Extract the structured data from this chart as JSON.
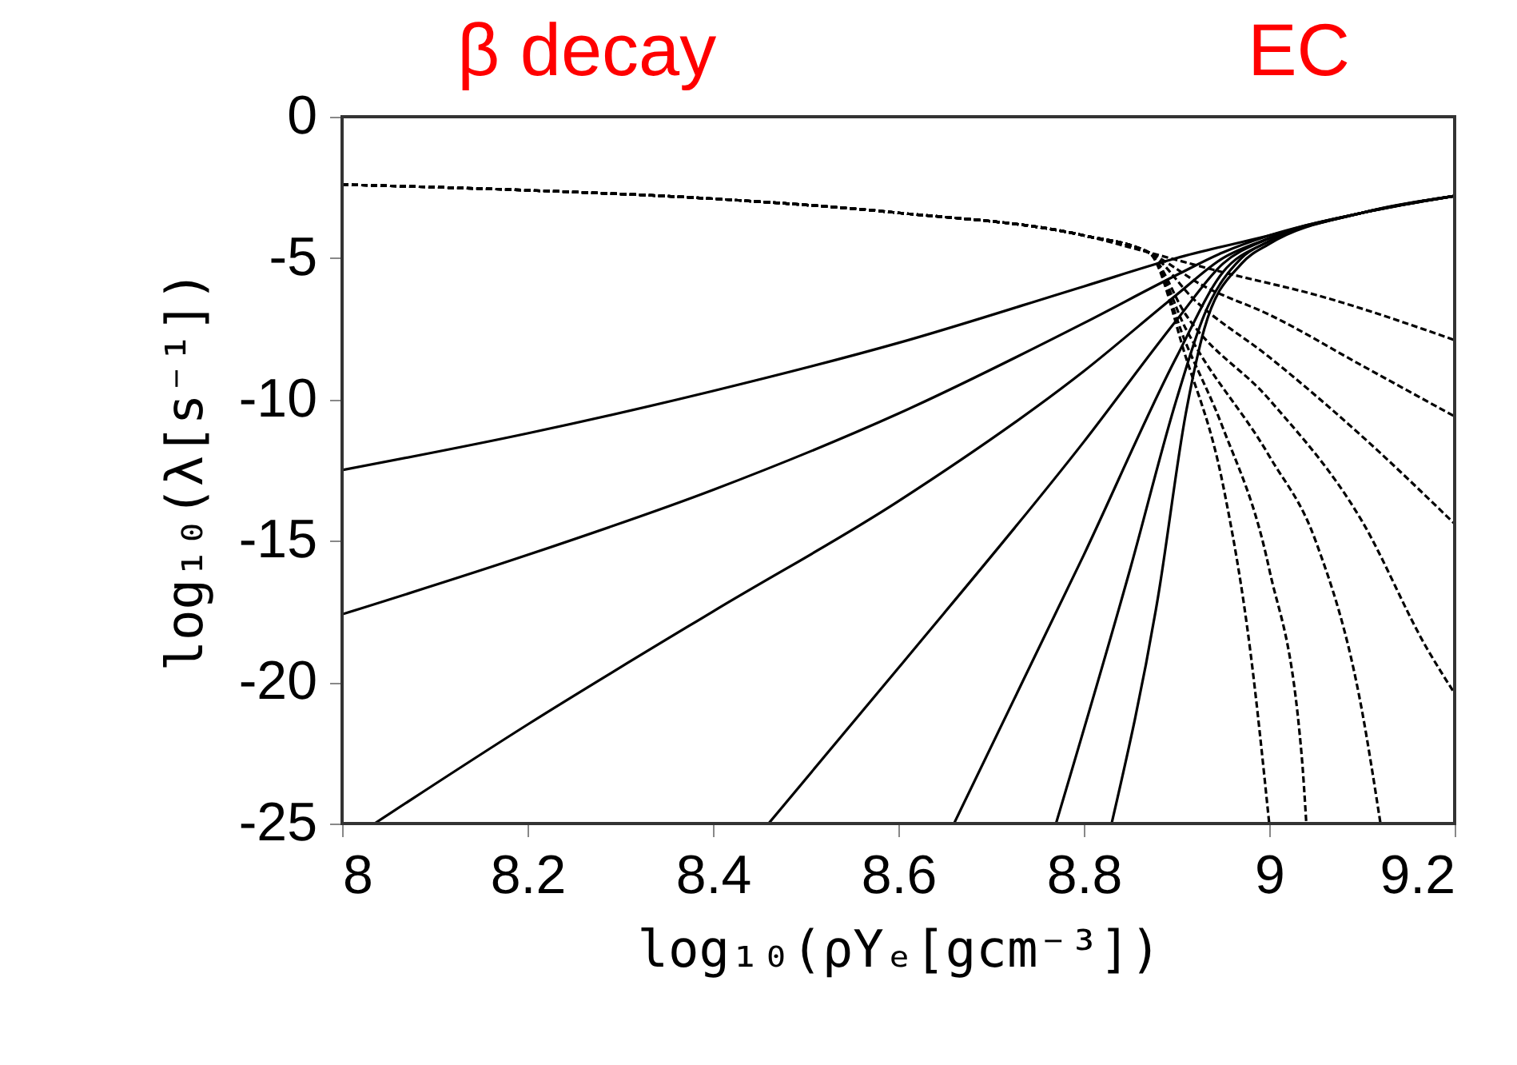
{
  "chart_data": {
    "type": "line",
    "xlabel": "log₁₀(ρYₑ[gcm⁻³])",
    "ylabel": "log₁₀(λ[s⁻¹])",
    "annotations": [
      "β decay",
      "EC"
    ],
    "xlim": [
      8,
      9.2
    ],
    "xticks": [
      8,
      8.2,
      8.4,
      8.6,
      8.8,
      9,
      9.2
    ],
    "ylim": [
      -25,
      0
    ],
    "yticks": [
      0,
      -5,
      -10,
      -15,
      -20,
      -25
    ],
    "grid": false,
    "legend": false,
    "series": [
      {
        "color": "#000000",
        "line_style": "solid",
        "x": [
          8,
          8.2,
          8.4,
          8.6,
          8.8,
          8.9,
          9.0,
          9.1,
          9.2
        ],
        "values": [
          -12.5,
          -11.2,
          -9.7,
          -8.0,
          -6.0,
          -5.0,
          -4.2,
          -3.4,
          -2.8
        ]
      },
      {
        "color": "#000000",
        "line_style": "solid",
        "x": [
          8,
          8.2,
          8.4,
          8.6,
          8.8,
          8.9,
          8.95,
          9.0,
          9.1,
          9.2
        ],
        "values": [
          -17.6,
          -15.5,
          -13.2,
          -10.5,
          -7.3,
          -5.6,
          -4.8,
          -4.2,
          -3.4,
          -2.8
        ]
      },
      {
        "color": "#000000",
        "line_style": "solid",
        "x": [
          8.035,
          8.2,
          8.4,
          8.6,
          8.8,
          8.9,
          8.95,
          9.0,
          9.1,
          9.2
        ],
        "values": [
          -25,
          -21.5,
          -17.5,
          -13.6,
          -9.0,
          -6.3,
          -5.0,
          -4.3,
          -3.4,
          -2.8
        ]
      },
      {
        "color": "#000000",
        "line_style": "solid",
        "x": [
          8.46,
          8.6,
          8.8,
          8.9,
          8.95,
          9.0,
          9.1,
          9.2
        ],
        "values": [
          -25,
          -19.5,
          -11.5,
          -7.2,
          -5.2,
          -4.3,
          -3.4,
          -2.8
        ]
      },
      {
        "color": "#000000",
        "line_style": "solid",
        "x": [
          8.66,
          8.8,
          8.9,
          8.95,
          9.0,
          9.1,
          9.2
        ],
        "values": [
          -25,
          -15.5,
          -8.5,
          -5.5,
          -4.4,
          -3.4,
          -2.8
        ]
      },
      {
        "color": "#000000",
        "line_style": "solid",
        "x": [
          8.77,
          8.85,
          8.9,
          8.93,
          8.97,
          9.0,
          9.1,
          9.2
        ],
        "values": [
          -25,
          -16,
          -10,
          -7,
          -5.0,
          -4.4,
          -3.4,
          -2.8
        ]
      },
      {
        "color": "#000000",
        "line_style": "solid",
        "x": [
          8.83,
          8.88,
          8.91,
          8.93,
          8.97,
          9.0,
          9.1,
          9.2
        ],
        "values": [
          -25,
          -17,
          -10.5,
          -7.5,
          -5.2,
          -4.5,
          -3.4,
          -2.8
        ]
      },
      {
        "color": "#000000",
        "line_style": "dashed",
        "x": [
          8,
          8.2,
          8.4,
          8.6,
          8.8,
          8.87,
          8.95,
          9.05,
          9.2
        ],
        "values": [
          -2.4,
          -2.6,
          -2.9,
          -3.4,
          -4.2,
          -4.8,
          -5.5,
          -6.3,
          -7.9
        ]
      },
      {
        "color": "#000000",
        "line_style": "dashed",
        "x": [
          8,
          8.2,
          8.4,
          8.6,
          8.8,
          8.87,
          8.93,
          9.0,
          9.1,
          9.2
        ],
        "values": [
          -2.4,
          -2.6,
          -2.9,
          -3.4,
          -4.2,
          -4.8,
          -6.0,
          -7.0,
          -8.8,
          -10.6
        ]
      },
      {
        "color": "#000000",
        "line_style": "dashed",
        "x": [
          8,
          8.2,
          8.4,
          8.6,
          8.8,
          8.87,
          8.92,
          9.0,
          9.1,
          9.2
        ],
        "values": [
          -2.4,
          -2.6,
          -2.9,
          -3.4,
          -4.2,
          -4.8,
          -6.5,
          -8.5,
          -11.3,
          -14.4
        ]
      },
      {
        "color": "#000000",
        "line_style": "dashed",
        "x": [
          8,
          8.2,
          8.4,
          8.6,
          8.8,
          8.87,
          8.91,
          9.0,
          9.1,
          9.17,
          9.2
        ],
        "values": [
          -2.4,
          -2.6,
          -2.9,
          -3.4,
          -4.2,
          -4.8,
          -7.0,
          -10.0,
          -14.3,
          -18.8,
          -20.4
        ]
      },
      {
        "color": "#000000",
        "line_style": "dashed",
        "x": [
          8,
          8.2,
          8.4,
          8.6,
          8.8,
          8.87,
          8.91,
          9.0,
          9.05,
          9.1,
          9.12
        ],
        "values": [
          -2.4,
          -2.6,
          -2.9,
          -3.4,
          -4.2,
          -4.8,
          -7.5,
          -12,
          -15,
          -21.0,
          -25
        ]
      },
      {
        "color": "#000000",
        "line_style": "dashed",
        "x": [
          8,
          8.2,
          8.4,
          8.6,
          8.8,
          8.87,
          8.91,
          8.95,
          9.0,
          9.035,
          9.04
        ],
        "values": [
          -2.4,
          -2.6,
          -2.9,
          -3.4,
          -4.2,
          -4.8,
          -8,
          -11,
          -16,
          -22.6,
          -25
        ]
      },
      {
        "color": "#000000",
        "line_style": "dashed",
        "x": [
          8,
          8.2,
          8.4,
          8.6,
          8.8,
          8.87,
          8.91,
          8.95,
          8.98,
          9.0
        ],
        "values": [
          -2.4,
          -2.6,
          -2.9,
          -3.4,
          -4.2,
          -4.8,
          -8.5,
          -13,
          -19,
          -25
        ]
      }
    ]
  }
}
